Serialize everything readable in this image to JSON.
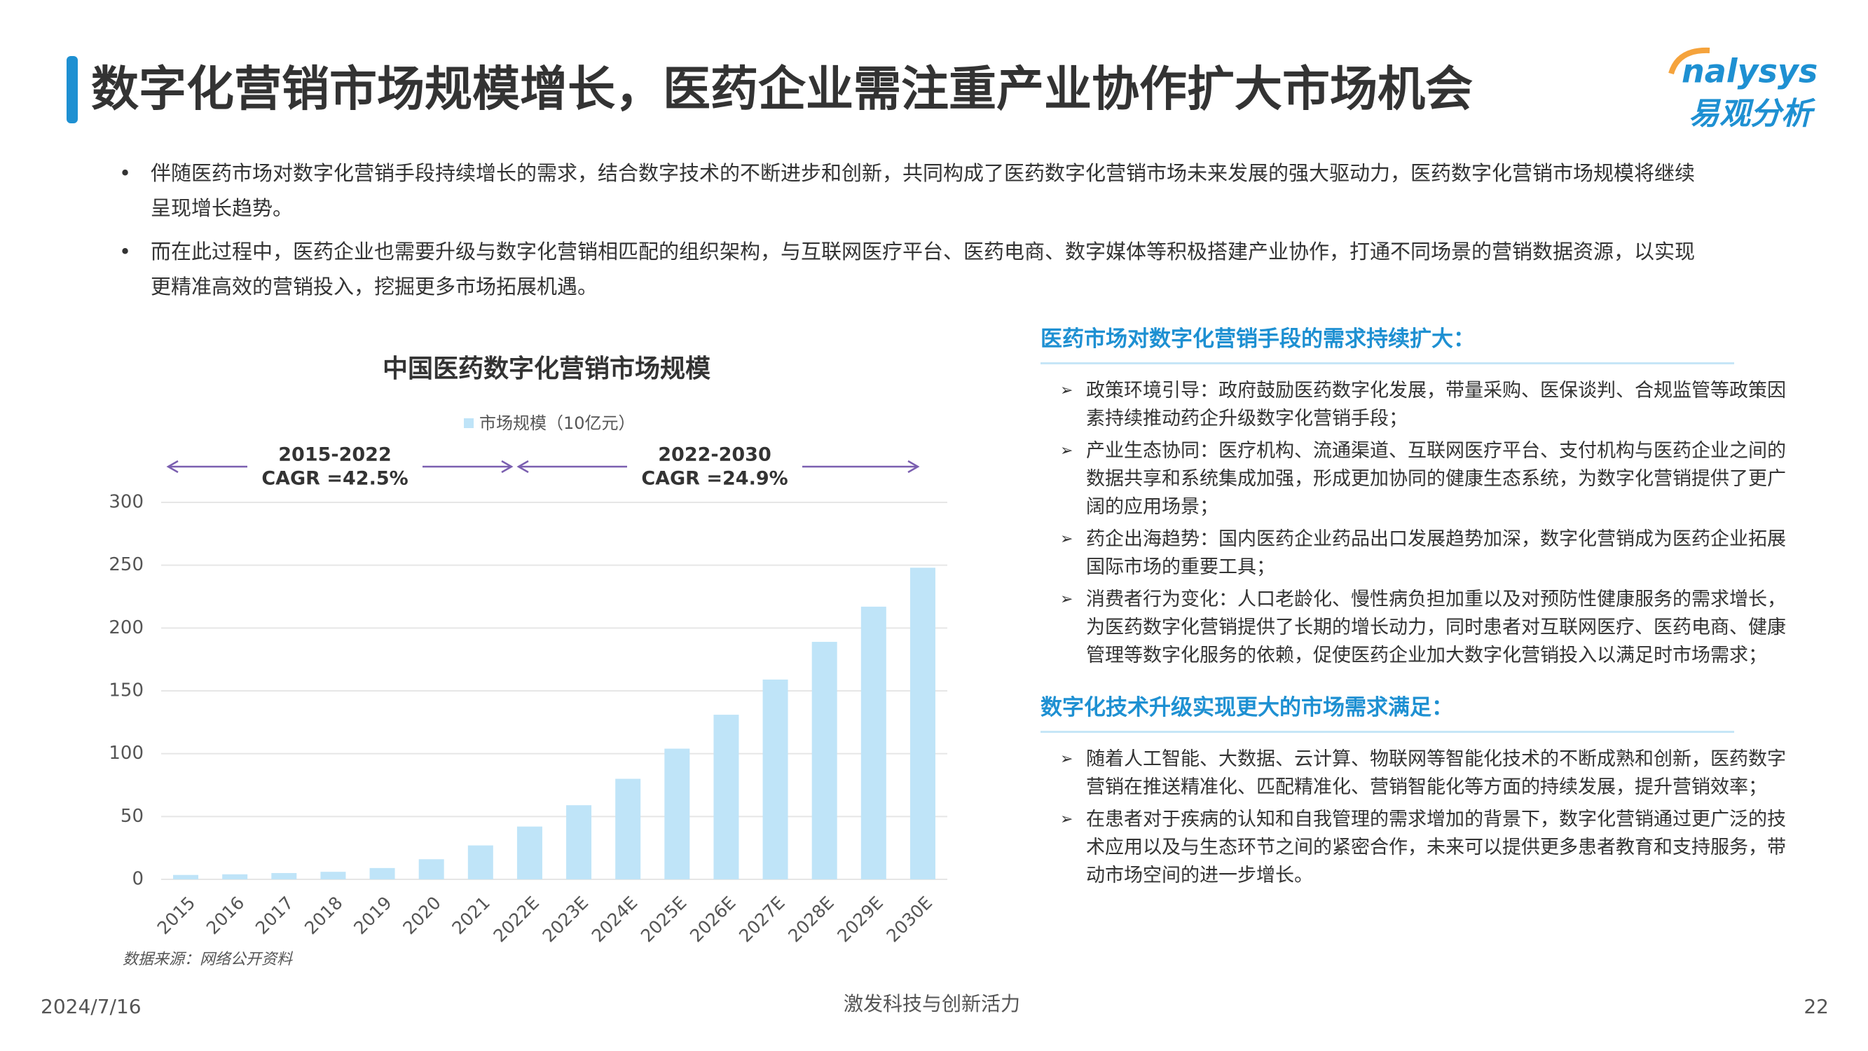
{
  "header": {
    "title": "数字化营销市场规模增长，医药企业需注重产业协作扩大市场机会",
    "logo_text": "nalysys",
    "logo_sub": "易观分析"
  },
  "bullets": [
    "伴随医药市场对数字化营销手段持续增长的需求，结合数字技术的不断进步和创新，共同构成了医药数字化营销市场未来发展的强大驱动力，医药数字化营销市场规模将继续呈现增长趋势。",
    "而在此过程中，医药企业也需要升级与数字化营销相匹配的组织架构，与互联网医疗平台、医药电商、数字媒体等积极搭建产业协作，打通不同场景的营销数据资源，以实现更精准高效的营销投入，挖掘更多市场拓展机遇。"
  ],
  "chart_data": {
    "type": "bar",
    "title": "中国医药数字化营销市场规模",
    "categories": [
      "2015",
      "2016",
      "2017",
      "2018",
      "2019",
      "2020",
      "2021",
      "2022E",
      "2023E",
      "2024E",
      "2025E",
      "2026E",
      "2027E",
      "2028E",
      "2029E",
      "2030E"
    ],
    "series": [
      {
        "name": "市场规模（10亿元）",
        "color": "#bfe4f8",
        "values": [
          3.5,
          4,
          5,
          6,
          9,
          16,
          27,
          42,
          59,
          80,
          104,
          131,
          159,
          189,
          217,
          248
        ]
      }
    ],
    "ylim": [
      0,
      300
    ],
    "yticks": [
      0,
      50,
      100,
      150,
      200,
      250,
      300
    ],
    "grid": true,
    "annotations": [
      {
        "period": "2015-2022",
        "label": "CAGR =42.5%"
      },
      {
        "period": "2022-2030",
        "label": "CAGR =24.9%"
      }
    ],
    "source": "数据来源：网络公开资料"
  },
  "sections": [
    {
      "heading": "医药市场对数字化营销手段的需求持续扩大：",
      "items": [
        "政策环境引导：政府鼓励医药数字化发展，带量采购、医保谈判、合规监管等政策因素持续推动药企升级数字化营销手段；",
        "产业生态协同：医疗机构、流通渠道、互联网医疗平台、支付机构与医药企业之间的数据共享和系统集成加强，形成更加协同的健康生态系统，为数字化营销提供了更广阔的应用场景；",
        "药企出海趋势：国内医药企业药品出口发展趋势加深，数字化营销成为医药企业拓展国际市场的重要工具；",
        "消费者行为变化：人口老龄化、慢性病负担加重以及对预防性健康服务的需求增长，为医药数字化营销提供了长期的增长动力，同时患者对互联网医疗、医药电商、健康管理等数字化服务的依赖，促使医药企业加大数字化营销投入以满足时市场需求；"
      ]
    },
    {
      "heading": "数字化技术升级实现更大的市场需求满足：",
      "items": [
        "随着人工智能、大数据、云计算、物联网等智能化技术的不断成熟和创新，医药数字营销在推送精准化、匹配精准化、营销智能化等方面的持续发展，提升营销效率；",
        "在患者对于疾病的认知和自我管理的需求增加的背景下，数字化营销通过更广泛的技术应用以及与生态环节之间的紧密合作，未来可以提供更多患者教育和支持服务，带动市场空间的进一步增长。"
      ]
    }
  ],
  "footer": {
    "date": "2024/7/16",
    "slogan": "激发科技与创新活力",
    "page": "22"
  }
}
